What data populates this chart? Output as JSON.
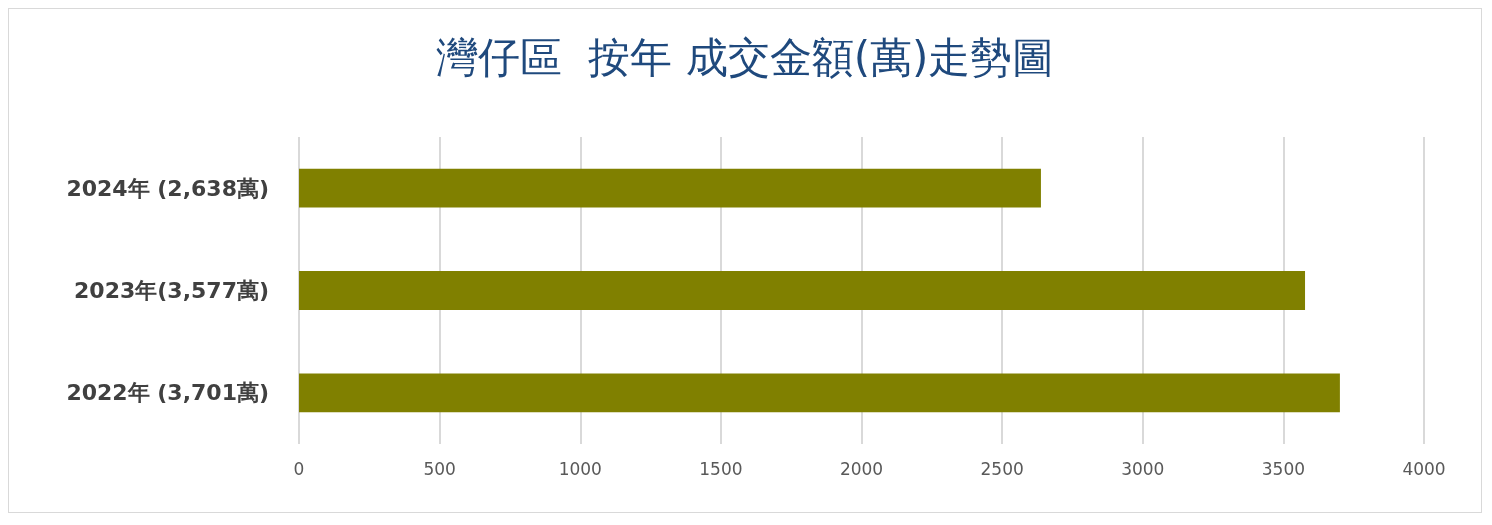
{
  "chart_data": {
    "type": "bar",
    "orientation": "horizontal",
    "title": "灣仔區  按年 成交金額(萬)走勢圖",
    "categories": [
      "2024年 (2,638萬)",
      "2023年(3,577萬)",
      "2022年 (3,701萬)"
    ],
    "values": [
      2638,
      3577,
      3701
    ],
    "color": "#808000",
    "xlim": [
      0,
      4000
    ],
    "xticks": [
      0,
      500,
      1000,
      1500,
      2000,
      2500,
      3000,
      3500,
      4000
    ],
    "grid": "x"
  }
}
